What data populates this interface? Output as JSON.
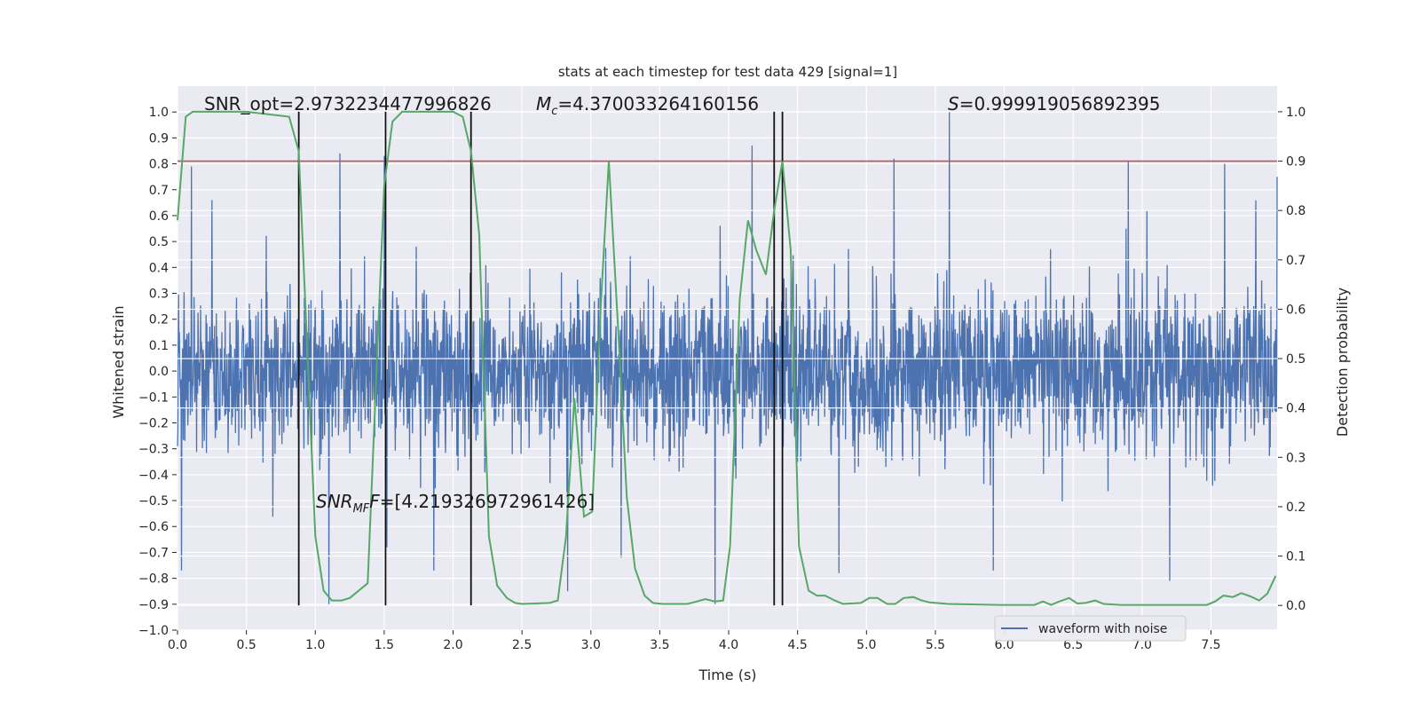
{
  "chart_data": {
    "type": "line",
    "title": "stats at each timestep for test data 429 [signal=1]",
    "xlabel": "Time (s)",
    "ylabel": "Whitened strain",
    "ylabel_right": "Detection probability",
    "xlim": [
      0,
      7.98
    ],
    "ylim": [
      -1.0,
      1.1
    ],
    "ylim_right": [
      -0.05,
      1.052
    ],
    "grid": true,
    "legend": {
      "placement": "lower-right",
      "entries": [
        "waveform with noise"
      ]
    },
    "xticks": [
      0.0,
      0.5,
      1.0,
      1.5,
      2.0,
      2.5,
      3.0,
      3.5,
      4.0,
      4.5,
      5.0,
      5.5,
      6.0,
      6.5,
      7.0,
      7.5
    ],
    "yticks": [
      -1.0,
      -0.9,
      -0.8,
      -0.7,
      -0.6,
      -0.5,
      -0.4,
      -0.3,
      -0.2,
      -0.1,
      0.0,
      0.1,
      0.2,
      0.3,
      0.4,
      0.5,
      0.6,
      0.7,
      0.8,
      0.9,
      1.0
    ],
    "yticks_right": [
      0.0,
      0.1,
      0.2,
      0.3,
      0.4,
      0.5,
      0.6,
      0.7,
      0.8,
      0.9,
      1.0
    ],
    "annotations": {
      "snr_opt": "SNR_opt=2.9732234477996826",
      "mc_symbol": "M",
      "mc_sub": "c",
      "mc_value": "=4.370033264160156",
      "s_symbol": "S",
      "s_value": "=0.999919056892395",
      "snr_mf_symbol": "SNR",
      "snr_mf_sub": "MF",
      "snr_mf_value": "=[4.219326972961426]"
    },
    "strain": {
      "name": "waveform with noise",
      "color": "#4c72b0",
      "samples": 3000,
      "noise_std": 0.155,
      "seed": 429,
      "peaks": [
        [
          0.03,
          -0.77
        ],
        [
          0.1,
          0.79
        ],
        [
          0.25,
          0.66
        ],
        [
          1.1,
          -0.9
        ],
        [
          1.18,
          0.84
        ],
        [
          1.5,
          0.83
        ],
        [
          1.52,
          -0.68
        ],
        [
          1.86,
          -0.77
        ],
        [
          2.83,
          -0.85
        ],
        [
          3.22,
          -0.72
        ],
        [
          3.9,
          -0.9
        ],
        [
          4.17,
          0.87
        ],
        [
          4.8,
          -0.78
        ],
        [
          5.2,
          0.82
        ],
        [
          5.6,
          1.0
        ],
        [
          5.92,
          -0.77
        ],
        [
          6.9,
          0.81
        ],
        [
          7.2,
          -0.81
        ],
        [
          7.6,
          0.8
        ],
        [
          7.98,
          0.75
        ]
      ]
    },
    "probability": {
      "name": "detection probability",
      "color": "#55a868",
      "t": [
        0.0,
        0.06,
        0.11,
        0.5,
        0.81,
        0.88,
        1.0,
        1.06,
        1.12,
        1.19,
        1.25,
        1.38,
        1.5,
        1.56,
        1.63,
        2.0,
        2.07,
        2.13,
        2.19,
        2.26,
        2.32,
        2.39,
        2.45,
        2.5,
        2.7,
        2.76,
        2.82,
        2.88,
        2.95,
        3.01,
        3.07,
        3.13,
        3.2,
        3.26,
        3.32,
        3.39,
        3.45,
        3.52,
        3.7,
        3.77,
        3.83,
        3.9,
        3.96,
        4.01,
        4.08,
        4.14,
        4.2,
        4.27,
        4.33,
        4.39,
        4.45,
        4.51,
        4.58,
        4.64,
        4.7,
        4.77,
        4.83,
        4.96,
        5.02,
        5.08,
        5.15,
        5.21,
        5.27,
        5.34,
        5.4,
        5.46,
        5.59,
        5.97,
        6.22,
        6.28,
        6.34,
        6.4,
        6.47,
        6.53,
        6.59,
        6.66,
        6.72,
        6.85,
        7.47,
        7.53,
        7.59,
        7.66,
        7.72,
        7.79,
        7.85,
        7.91,
        7.97
      ],
      "p": [
        0.78,
        0.99,
        1.0,
        1.0,
        0.99,
        0.92,
        0.14,
        0.03,
        0.01,
        0.01,
        0.015,
        0.045,
        0.85,
        0.98,
        1.0,
        1.0,
        0.99,
        0.92,
        0.75,
        0.14,
        0.04,
        0.015,
        0.005,
        0.003,
        0.005,
        0.01,
        0.14,
        0.42,
        0.18,
        0.19,
        0.6,
        0.9,
        0.55,
        0.22,
        0.075,
        0.02,
        0.005,
        0.003,
        0.003,
        0.008,
        0.013,
        0.008,
        0.01,
        0.12,
        0.62,
        0.78,
        0.72,
        0.67,
        0.8,
        0.9,
        0.72,
        0.12,
        0.03,
        0.02,
        0.02,
        0.01,
        0.003,
        0.005,
        0.015,
        0.015,
        0.003,
        0.003,
        0.015,
        0.017,
        0.01,
        0.006,
        0.003,
        0.001,
        0.001,
        0.008,
        0.001,
        0.008,
        0.015,
        0.004,
        0.005,
        0.01,
        0.003,
        0.001,
        0.001,
        0.008,
        0.02,
        0.017,
        0.025,
        0.018,
        0.01,
        0.024,
        0.06
      ]
    },
    "threshold": {
      "value": 0.9,
      "axis": "right",
      "color": "#c44e52"
    },
    "event_lines": {
      "times": [
        0.88,
        1.51,
        2.13,
        4.33,
        4.39
      ],
      "from": 0.0,
      "to": 1.0,
      "axis": "right",
      "color": "#111111"
    },
    "background_color": "#eaeaf2"
  }
}
